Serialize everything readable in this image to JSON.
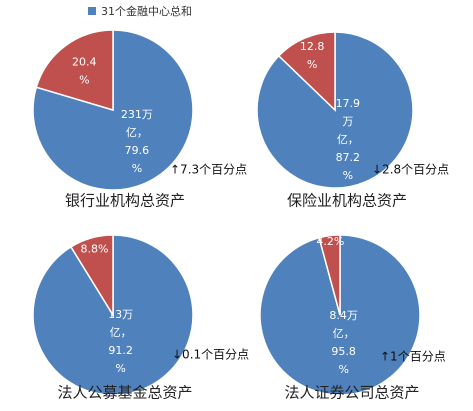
{
  "legend": {
    "label": "31个金融中心总和",
    "color": "#4f81bd"
  },
  "chart_data": [
    {
      "type": "pie",
      "title": "银行业机构总资产",
      "values": [
        79.6,
        20.4
      ],
      "colors": [
        "#4f81bd",
        "#c0504d"
      ],
      "value_labels": [
        [
          "231万",
          "亿，",
          "79.6",
          "%"
        ],
        [
          "20.4",
          "%"
        ]
      ],
      "annotation": "↑7.3个百分点"
    },
    {
      "type": "pie",
      "title": "保险业机构总资产",
      "values": [
        87.2,
        12.8
      ],
      "colors": [
        "#4f81bd",
        "#c0504d"
      ],
      "value_labels": [
        [
          "17.9",
          "万",
          "亿，",
          "87.2",
          "%"
        ],
        [
          "12.8",
          "%"
        ]
      ],
      "annotation": "↓2.8个百分点"
    },
    {
      "type": "pie",
      "title": "法人公募基金总资产",
      "values": [
        91.2,
        8.8
      ],
      "colors": [
        "#4f81bd",
        "#c0504d"
      ],
      "value_labels": [
        [
          "13万",
          "亿，",
          "91.2",
          "%"
        ],
        [
          "8.8%"
        ]
      ],
      "annotation": "↓0.1个百分点"
    },
    {
      "type": "pie",
      "title": "法人证券公司总资产",
      "values": [
        95.8,
        4.2
      ],
      "colors": [
        "#4f81bd",
        "#c0504d"
      ],
      "value_labels": [
        [
          "8.4万",
          "亿，",
          "95.8",
          "%"
        ],
        [
          "4.2%"
        ]
      ],
      "annotation": "↑1个百分点"
    }
  ]
}
